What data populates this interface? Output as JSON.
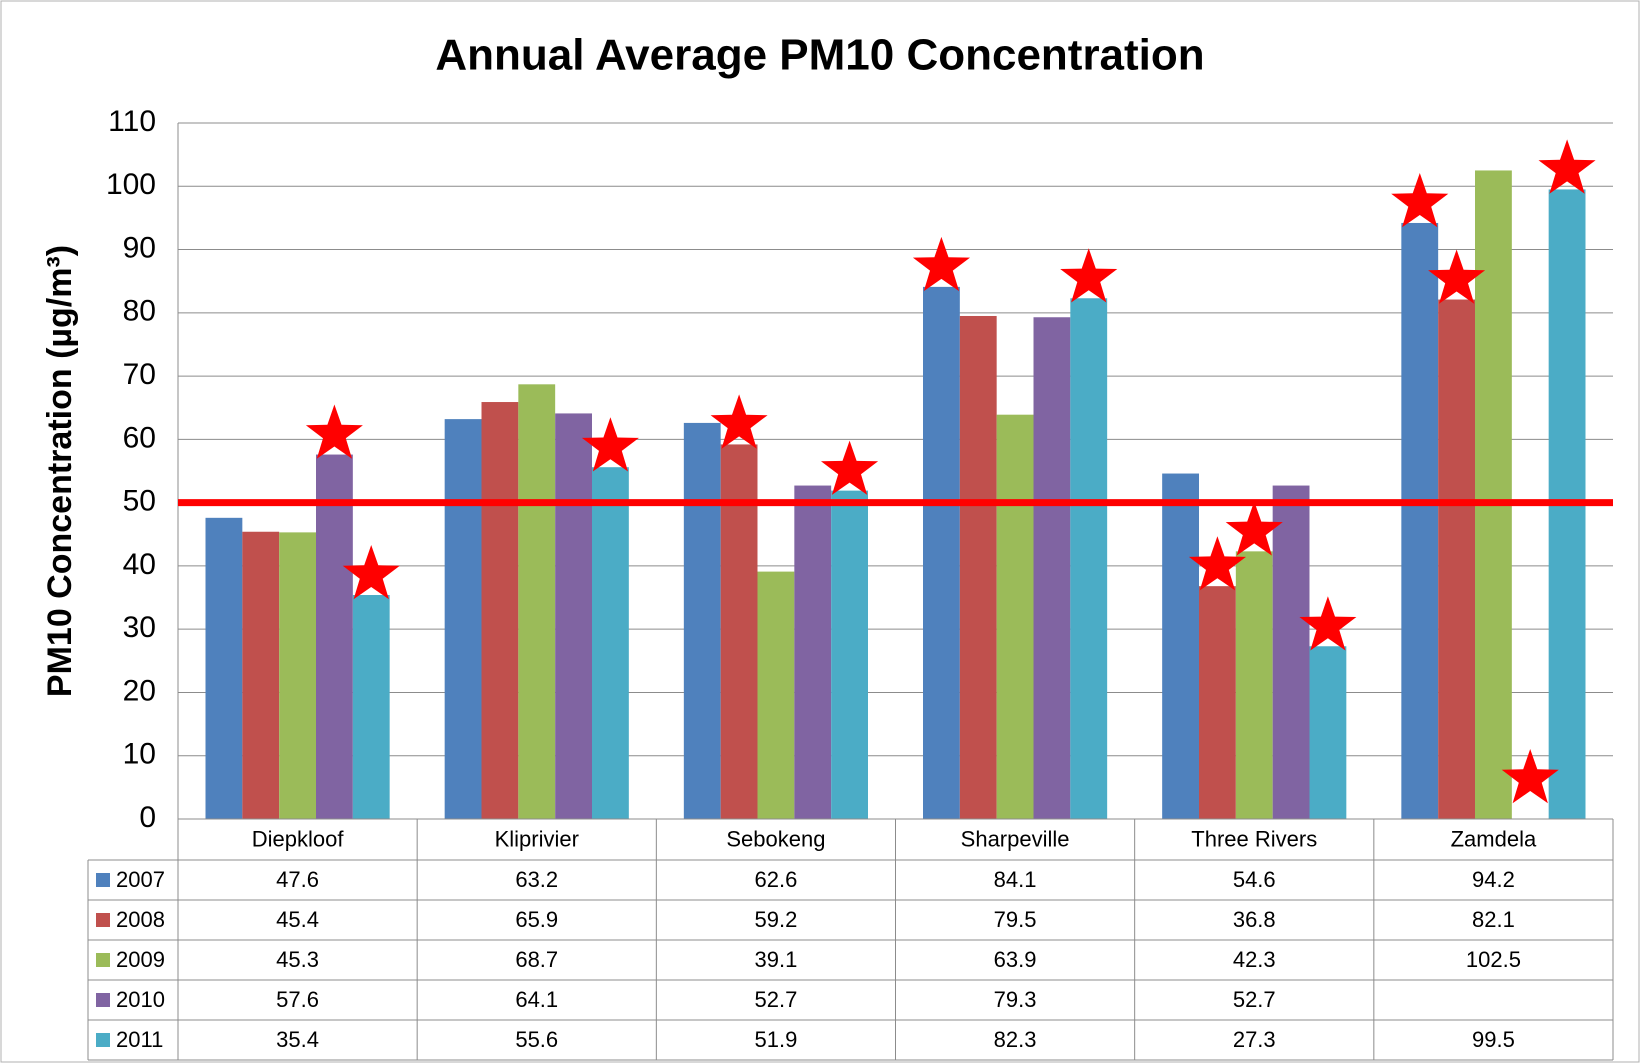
{
  "chart_data": {
    "type": "bar",
    "title": "Annual Average PM10 Concentration",
    "y_label": "PM10 Concentration (µg/m³)",
    "categories": [
      "Diepkloof",
      "Kliprivier",
      "Sebokeng",
      "Sharpeville",
      "Three Rivers",
      "Zamdela"
    ],
    "series": [
      {
        "name": "2007",
        "color": "#4f81bd",
        "values": [
          47.6,
          63.2,
          62.6,
          84.1,
          54.6,
          94.2
        ],
        "starred": [
          false,
          false,
          false,
          true,
          false,
          true
        ]
      },
      {
        "name": "2008",
        "color": "#c0504d",
        "values": [
          45.4,
          65.9,
          59.2,
          79.5,
          36.8,
          82.1
        ],
        "starred": [
          false,
          false,
          true,
          false,
          true,
          true
        ]
      },
      {
        "name": "2009",
        "color": "#9bbb59",
        "values": [
          45.3,
          68.7,
          39.1,
          63.9,
          42.3,
          102.5
        ],
        "starred": [
          false,
          false,
          false,
          false,
          true,
          false
        ]
      },
      {
        "name": "2010",
        "color": "#8064a2",
        "values": [
          57.6,
          64.1,
          52.7,
          79.3,
          52.7,
          null
        ],
        "starred": [
          true,
          false,
          false,
          false,
          false,
          true
        ]
      },
      {
        "name": "2011",
        "color": "#4bacc6",
        "values": [
          35.4,
          55.6,
          51.9,
          82.3,
          27.3,
          99.5
        ],
        "starred": [
          true,
          true,
          true,
          true,
          true,
          true
        ]
      }
    ],
    "ylim": [
      0,
      110
    ],
    "yticks": [
      0,
      10,
      20,
      30,
      40,
      50,
      60,
      70,
      80,
      90,
      100,
      110
    ],
    "grid": true,
    "threshold": 50,
    "threshold_color": "#ff0000",
    "star_color": "#ff0000",
    "legend": "data-table"
  }
}
